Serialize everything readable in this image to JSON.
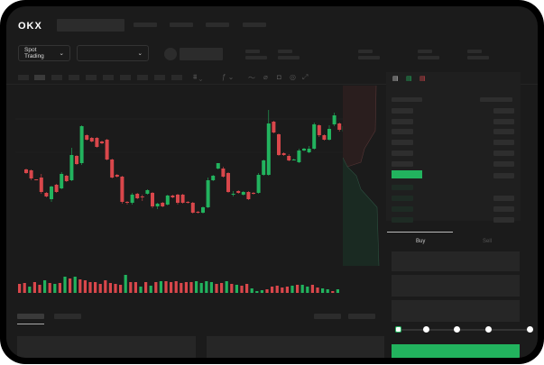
{
  "header": {
    "logo": "OKX",
    "market_selector": "Spot Trading"
  },
  "order_book": {
    "view_icons": [
      "book-both-icon",
      "book-bids-icon",
      "book-asks-icon"
    ]
  },
  "trade_panel": {
    "tabs": [
      "Buy",
      "Sell"
    ],
    "active_tab": "Buy",
    "leverage_steps": 5,
    "selected_step": 0
  },
  "colors": {
    "up": "#22b35e",
    "down": "#d9474b",
    "background": "#1b1b1b"
  },
  "chart_data": {
    "type": "candlestick",
    "candles": [
      [
        59,
        55,
        60,
        54
      ],
      [
        58,
        49,
        59,
        47
      ],
      [
        48,
        47,
        48,
        47
      ],
      [
        50,
        34,
        54,
        32
      ],
      [
        33,
        29,
        34,
        28
      ],
      [
        26,
        40,
        23,
        41
      ],
      [
        42,
        34,
        43,
        33
      ],
      [
        38,
        54,
        37,
        56
      ],
      [
        52,
        46,
        53,
        45
      ],
      [
        47,
        75,
        46,
        83
      ],
      [
        74,
        65,
        75,
        64
      ],
      [
        66,
        107,
        64,
        108
      ],
      [
        97,
        92,
        98,
        91
      ],
      [
        94,
        90,
        95,
        89
      ],
      [
        94,
        84,
        95,
        83
      ],
      [
        90,
        88,
        91,
        87
      ],
      [
        92,
        70,
        93,
        69
      ],
      [
        70,
        50,
        71,
        49
      ],
      [
        53,
        51,
        54,
        50
      ],
      [
        51,
        23,
        52,
        21
      ],
      [
        23,
        22,
        24,
        20
      ],
      [
        22,
        31,
        20,
        33
      ],
      [
        32,
        27,
        33,
        26
      ],
      [
        29,
        28,
        31,
        24
      ],
      [
        32,
        36,
        31,
        37
      ],
      [
        33,
        18,
        34,
        16
      ],
      [
        18,
        21,
        15,
        22
      ],
      [
        22,
        18,
        23,
        17
      ],
      [
        20,
        30,
        19,
        31
      ],
      [
        30,
        28,
        31,
        27
      ],
      [
        31,
        22,
        32,
        20
      ],
      [
        31,
        22,
        32,
        21
      ],
      [
        23,
        22,
        24,
        21
      ],
      [
        22,
        11,
        23,
        10
      ],
      [
        12,
        11,
        13,
        10
      ],
      [
        11,
        17,
        10,
        18
      ],
      [
        17,
        47,
        16,
        50
      ],
      [
        47,
        52,
        46,
        53
      ],
      [
        60,
        66,
        59,
        62
      ],
      [
        60,
        51,
        62,
        50
      ],
      [
        55,
        34,
        56,
        33
      ],
      [
        32,
        32,
        35,
        29
      ],
      [
        35,
        33,
        36,
        32
      ],
      [
        31,
        34,
        30,
        35
      ],
      [
        34,
        26,
        35,
        25
      ],
      [
        33,
        32,
        34,
        31
      ],
      [
        33,
        53,
        32,
        55
      ],
      [
        53,
        69,
        52,
        70
      ],
      [
        53,
        110,
        52,
        125
      ],
      [
        112,
        100,
        113,
        99
      ],
      [
        98,
        75,
        99,
        74
      ],
      [
        77,
        75,
        78,
        74
      ],
      [
        74,
        69,
        76,
        68
      ],
      [
        70,
        70,
        71,
        69
      ],
      [
        67,
        80,
        66,
        82
      ],
      [
        80,
        82,
        79,
        83
      ],
      [
        78,
        82,
        77,
        85
      ],
      [
        82,
        109,
        81,
        111
      ],
      [
        108,
        97,
        109,
        95
      ],
      [
        97,
        92,
        98,
        91
      ],
      [
        92,
        104,
        91,
        108
      ],
      [
        109,
        119,
        107,
        122
      ],
      [
        110,
        103,
        111,
        101
      ],
      [
        101,
        107,
        100,
        110
      ]
    ],
    "volume": [
      10,
      11,
      7,
      12,
      9,
      14,
      11,
      10,
      11,
      18,
      16,
      18,
      15,
      14,
      12,
      12,
      10,
      14,
      11,
      10,
      9,
      20,
      12,
      12,
      7,
      12,
      8,
      12,
      13,
      13,
      12,
      13,
      11,
      12,
      12,
      13,
      11,
      13,
      12,
      10,
      11,
      13,
      10,
      9,
      8,
      10,
      5,
      2,
      3,
      4,
      7,
      8,
      6,
      7,
      8,
      9,
      9,
      7,
      9,
      6,
      5,
      4,
      2,
      4
    ],
    "volume_up": [
      false,
      false,
      true,
      false,
      false,
      true,
      false,
      true,
      false,
      true,
      false,
      true,
      false,
      false,
      false,
      false,
      false,
      false,
      false,
      false,
      false,
      true,
      false,
      false,
      true,
      false,
      true,
      false,
      true,
      false,
      false,
      false,
      false,
      false,
      false,
      true,
      true,
      true,
      true,
      false,
      false,
      true,
      false,
      true,
      false,
      false,
      true,
      true,
      true,
      false,
      false,
      false,
      false,
      false,
      true,
      false,
      true,
      true,
      false,
      false,
      true,
      true,
      false,
      true
    ]
  }
}
